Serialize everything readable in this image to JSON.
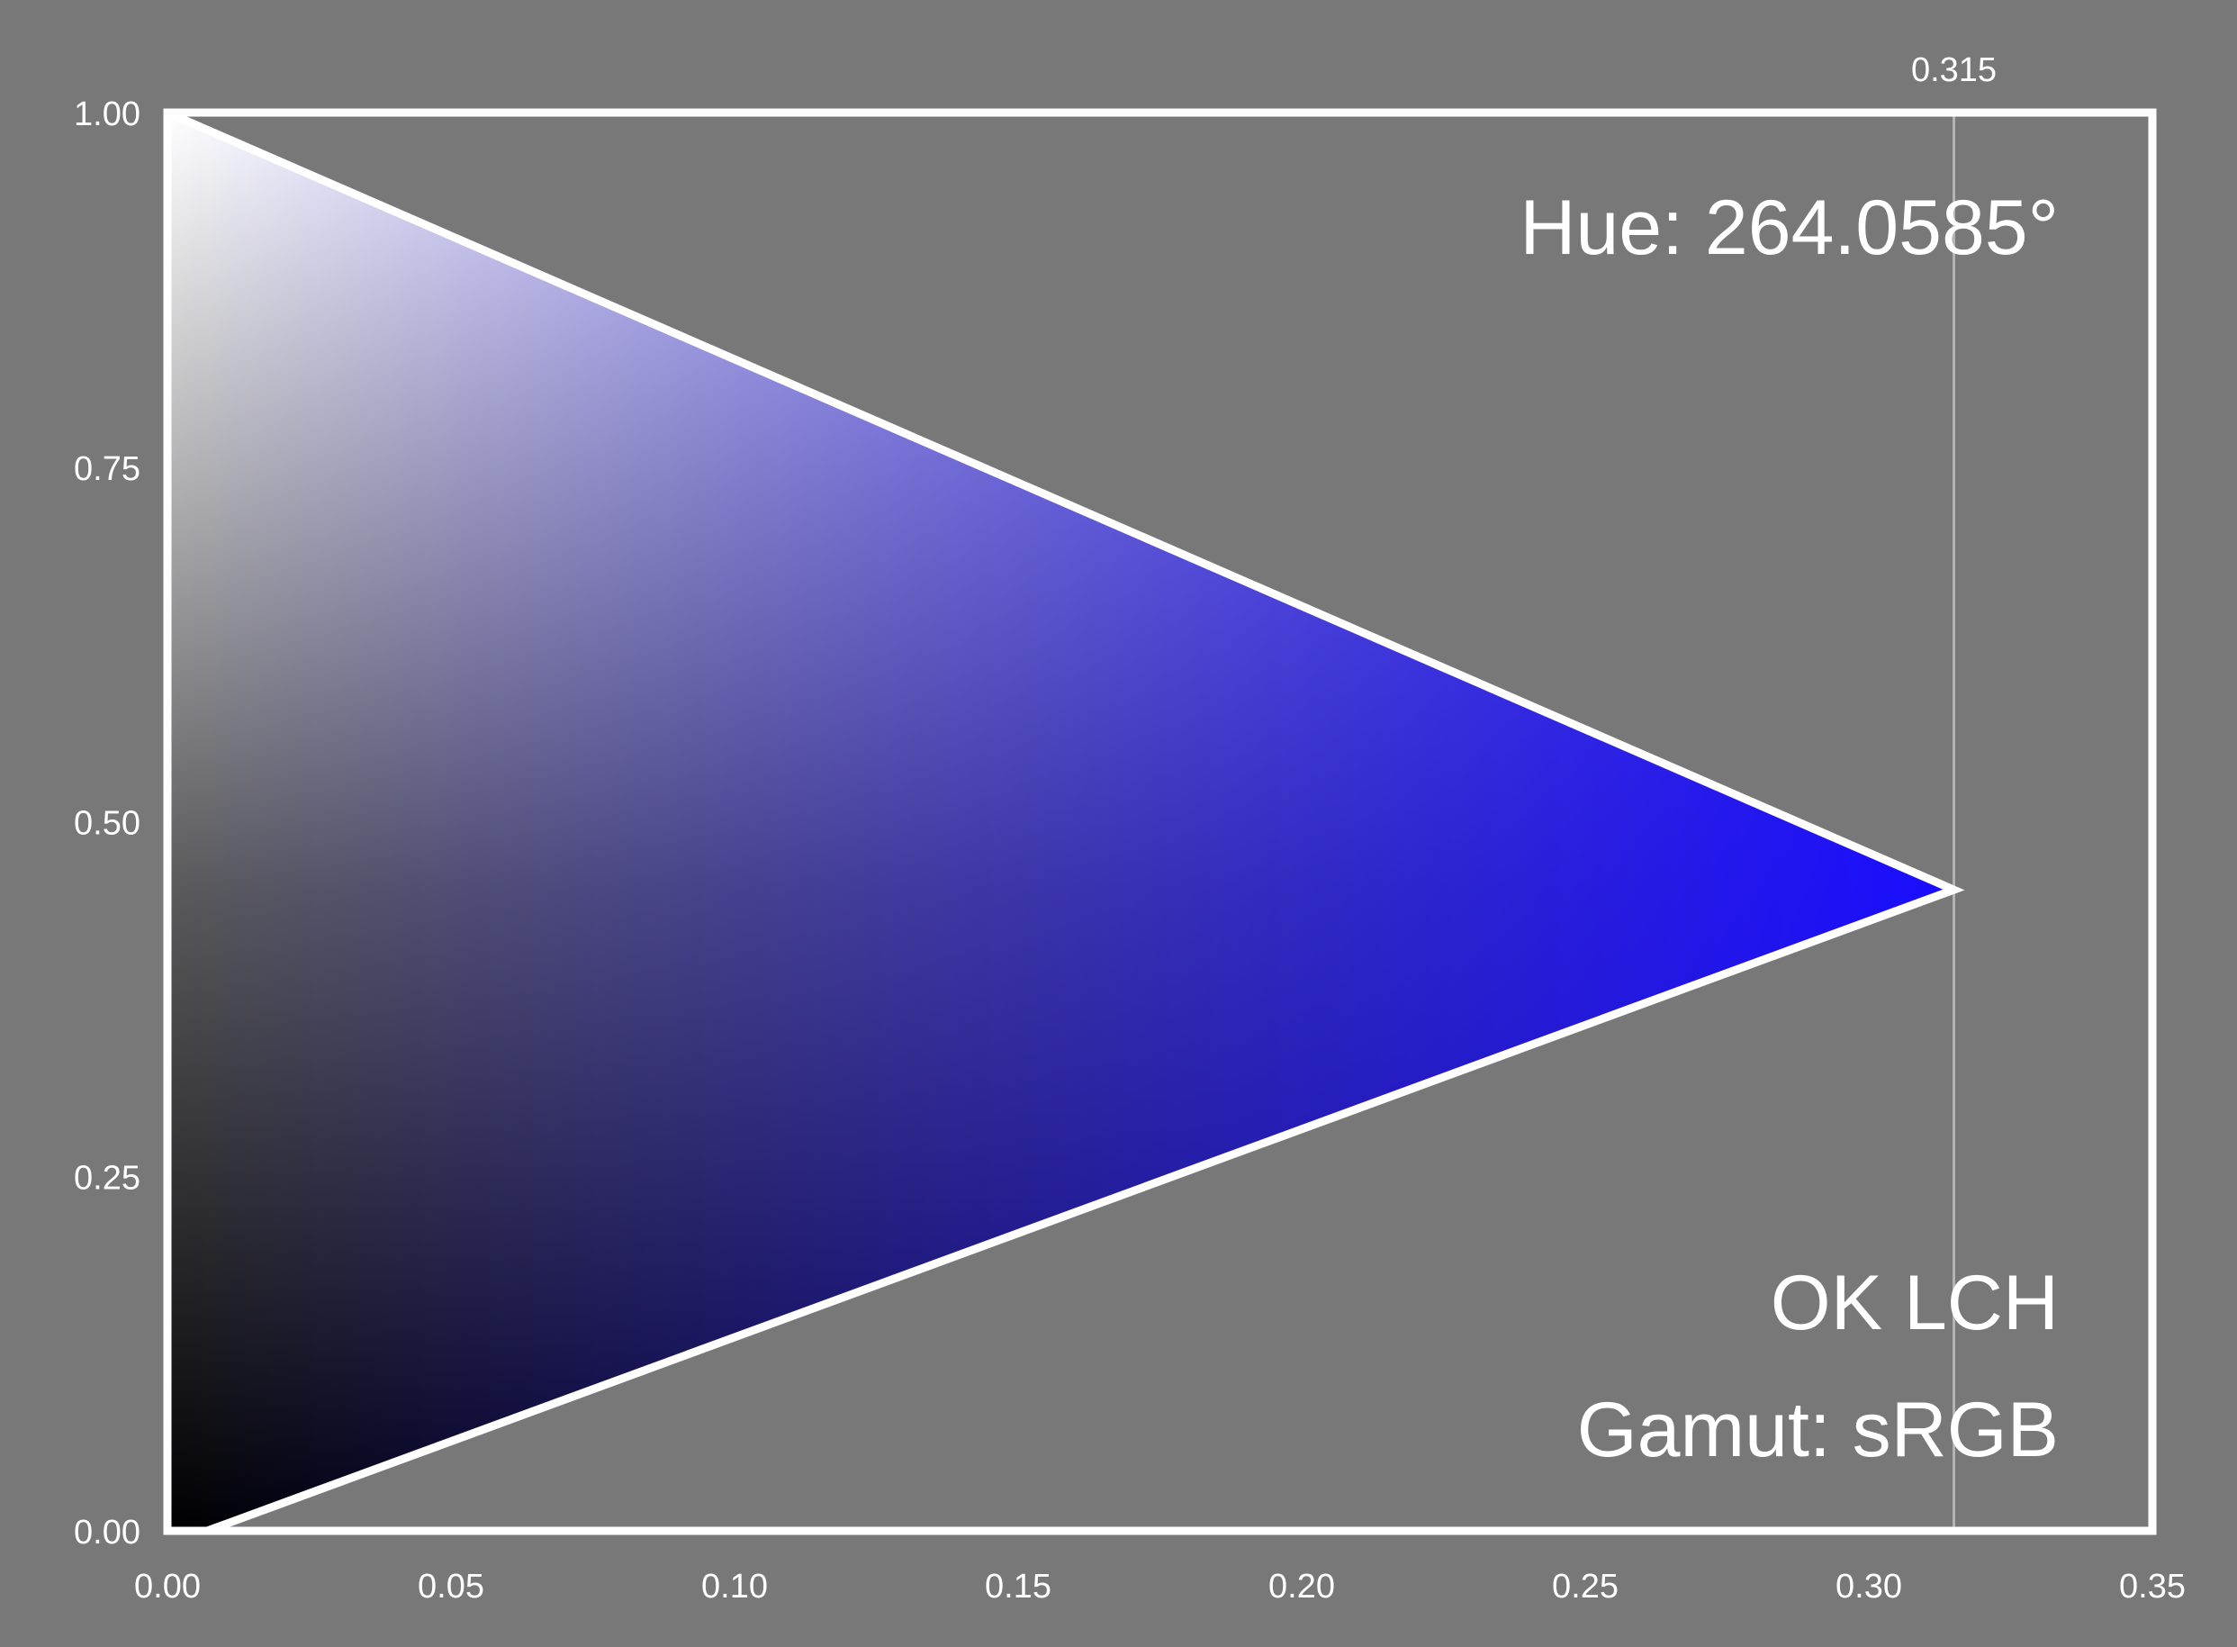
{
  "chart_data": {
    "type": "area",
    "colorspace_label": "OK LCH",
    "gamut_label": "Gamut: sRGB",
    "hue_label": "Hue: 264.0585°",
    "cusp_label": "0.315",
    "background_color": "#787878",
    "frame_color": "#ffffff",
    "cusp_line_color": "#b4b4b4",
    "colors": {
      "white": "#ffffff",
      "black": "#000000",
      "cusp": "#1a0dff",
      "cusp_gray": "#5a5a5a"
    },
    "xlim": [
      0,
      0.35
    ],
    "ylim": [
      0,
      1
    ],
    "x_ticks": [
      "0.00",
      "0.05",
      "0.10",
      "0.15",
      "0.20",
      "0.25",
      "0.30",
      "0.35"
    ],
    "y_ticks": [
      "0.00",
      "0.25",
      "0.50",
      "0.75",
      "1.00"
    ],
    "grid": false,
    "cusp": {
      "chroma": 0.315,
      "lightness": 0.452
    },
    "gamut_boundary": {
      "upper": [
        [
          0.0,
          1.0
        ],
        [
          0.315,
          0.452
        ]
      ],
      "lower": [
        [
          0.315,
          0.452
        ],
        [
          0.007,
          0.0
        ]
      ]
    }
  }
}
